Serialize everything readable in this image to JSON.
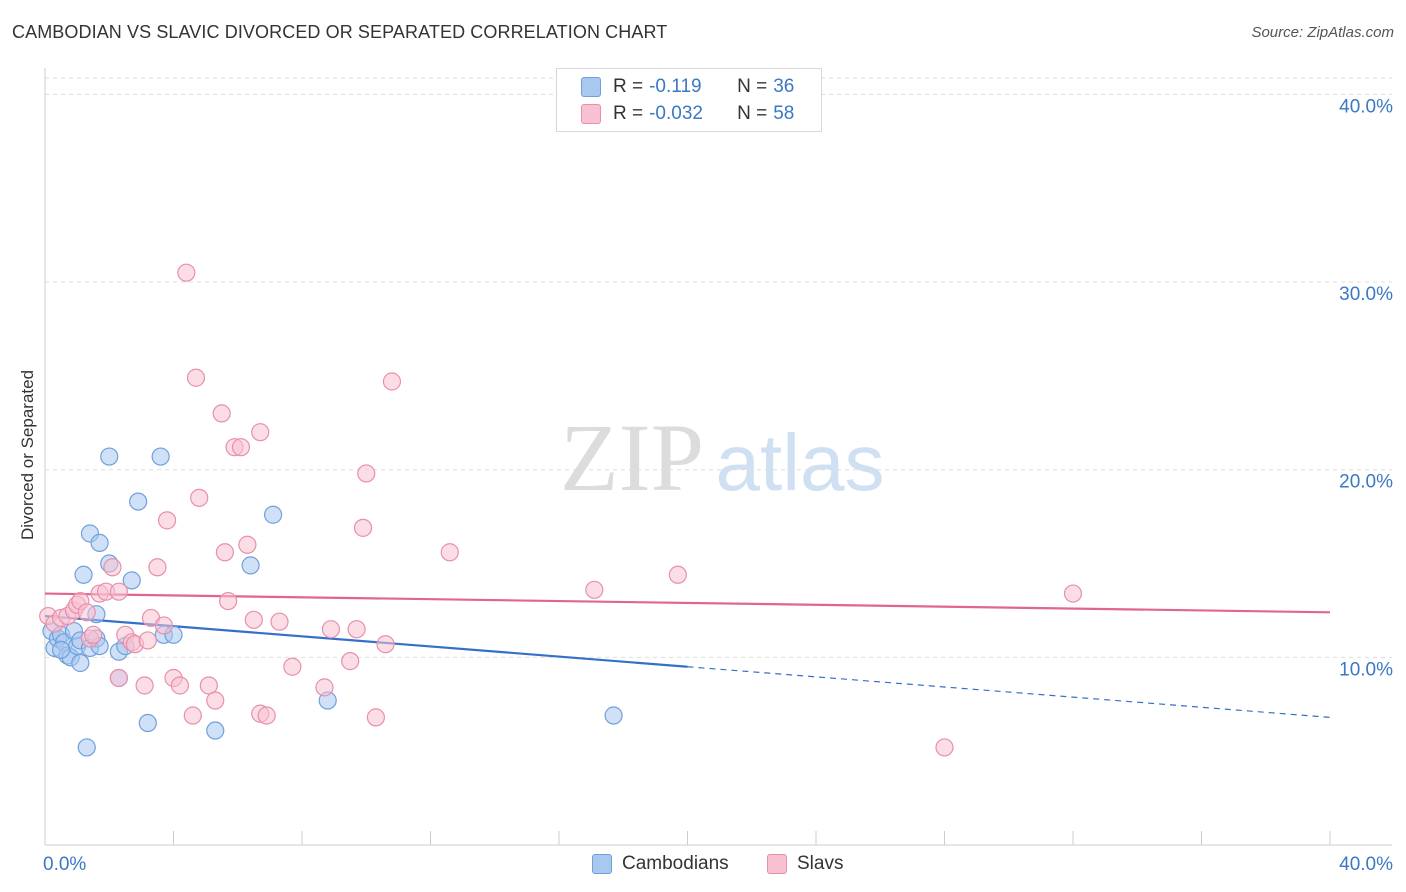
{
  "title": "CAMBODIAN VS SLAVIC DIVORCED OR SEPARATED CORRELATION CHART",
  "source": "Source: ZipAtlas.com",
  "watermark": {
    "part1": "ZIP",
    "part2": "atlas"
  },
  "legend_top": [
    {
      "r_label": "R =",
      "r_value": "-0.119",
      "n_label": "N =",
      "n_value": "36",
      "color": "#a9c8f0",
      "border": "#6fa0dc"
    },
    {
      "r_label": "R =",
      "r_value": "-0.032",
      "n_label": "N =",
      "n_value": "58",
      "color": "#f7c1d2",
      "border": "#e98fab"
    }
  ],
  "bottom_legend": [
    {
      "label": "Cambodians",
      "color": "#a9c8f0",
      "border": "#6fa0dc"
    },
    {
      "label": "Slavs",
      "color": "#f7c1d2",
      "border": "#e98fab"
    }
  ],
  "chart_data": {
    "type": "scatter",
    "title": "CAMBODIAN VS SLAVIC DIVORCED OR SEPARATED CORRELATION CHART",
    "xlabel": "",
    "ylabel": "Divorced or Separated",
    "xlim": [
      0,
      40
    ],
    "ylim": [
      0,
      41.3
    ],
    "x_tick_labels": [
      "0.0%",
      "40.0%"
    ],
    "y_ticks": [
      10,
      20,
      30,
      40
    ],
    "y_tick_labels": [
      "10.0%",
      "20.0%",
      "30.0%",
      "40.0%"
    ],
    "grid": true,
    "legend_position": "top-center",
    "series": [
      {
        "name": "Cambodians",
        "color": "#6fa0dc",
        "fill": "#a9c8f0",
        "trend": {
          "x": [
            0,
            20
          ],
          "y": [
            12.2,
            9.5
          ],
          "dashed_to": [
            40,
            6.8
          ],
          "color": "#3570c8"
        },
        "points": [
          [
            0.2,
            11.4
          ],
          [
            0.3,
            10.5
          ],
          [
            0.4,
            11.0
          ],
          [
            0.5,
            11.2
          ],
          [
            0.6,
            10.8
          ],
          [
            0.7,
            10.1
          ],
          [
            0.8,
            10.0
          ],
          [
            0.9,
            11.4
          ],
          [
            1.0,
            10.6
          ],
          [
            1.1,
            10.9
          ],
          [
            1.1,
            9.7
          ],
          [
            1.2,
            14.4
          ],
          [
            1.3,
            5.2
          ],
          [
            1.4,
            10.5
          ],
          [
            1.4,
            16.6
          ],
          [
            1.6,
            11.0
          ],
          [
            1.6,
            12.3
          ],
          [
            1.7,
            10.6
          ],
          [
            1.7,
            16.1
          ],
          [
            2.0,
            15.0
          ],
          [
            2.0,
            20.7
          ],
          [
            2.3,
            10.3
          ],
          [
            2.3,
            8.9
          ],
          [
            2.5,
            10.6
          ],
          [
            2.7,
            14.1
          ],
          [
            2.9,
            18.3
          ],
          [
            3.2,
            6.5
          ],
          [
            3.6,
            20.7
          ],
          [
            3.7,
            11.2
          ],
          [
            4.0,
            11.2
          ],
          [
            5.3,
            6.1
          ],
          [
            6.4,
            14.9
          ],
          [
            7.1,
            17.6
          ],
          [
            8.8,
            7.7
          ],
          [
            17.7,
            6.9
          ],
          [
            0.5,
            10.4
          ]
        ]
      },
      {
        "name": "Slavs",
        "color": "#e98fab",
        "fill": "#f7c1d2",
        "trend": {
          "x": [
            0,
            40
          ],
          "y": [
            13.4,
            12.4
          ],
          "color": "#e0668e"
        },
        "points": [
          [
            0.1,
            12.2
          ],
          [
            0.3,
            11.8
          ],
          [
            0.5,
            12.1
          ],
          [
            0.7,
            12.2
          ],
          [
            0.9,
            12.5
          ],
          [
            1.0,
            12.8
          ],
          [
            1.1,
            13.0
          ],
          [
            1.3,
            12.4
          ],
          [
            1.4,
            11.0
          ],
          [
            1.5,
            11.2
          ],
          [
            1.7,
            13.4
          ],
          [
            1.9,
            13.5
          ],
          [
            2.1,
            14.8
          ],
          [
            2.3,
            13.5
          ],
          [
            2.3,
            8.9
          ],
          [
            2.5,
            11.2
          ],
          [
            2.7,
            10.8
          ],
          [
            2.8,
            10.7
          ],
          [
            3.1,
            8.5
          ],
          [
            3.2,
            10.9
          ],
          [
            3.3,
            12.1
          ],
          [
            3.5,
            14.8
          ],
          [
            3.7,
            11.7
          ],
          [
            3.8,
            17.3
          ],
          [
            4.0,
            8.9
          ],
          [
            4.2,
            8.5
          ],
          [
            4.4,
            30.5
          ],
          [
            4.6,
            6.9
          ],
          [
            4.7,
            24.9
          ],
          [
            4.8,
            18.5
          ],
          [
            5.1,
            8.5
          ],
          [
            5.3,
            7.7
          ],
          [
            5.5,
            23.0
          ],
          [
            5.6,
            15.6
          ],
          [
            5.7,
            13.0
          ],
          [
            5.9,
            21.2
          ],
          [
            6.1,
            21.2
          ],
          [
            6.3,
            16.0
          ],
          [
            6.5,
            12.0
          ],
          [
            6.7,
            22.0
          ],
          [
            6.7,
            7.0
          ],
          [
            6.9,
            6.9
          ],
          [
            7.3,
            11.9
          ],
          [
            7.7,
            9.5
          ],
          [
            8.7,
            8.4
          ],
          [
            8.9,
            11.5
          ],
          [
            9.5,
            9.8
          ],
          [
            9.7,
            11.5
          ],
          [
            10.0,
            19.8
          ],
          [
            10.3,
            6.8
          ],
          [
            9.9,
            16.9
          ],
          [
            10.6,
            10.7
          ],
          [
            10.8,
            24.7
          ],
          [
            12.6,
            15.6
          ],
          [
            17.1,
            13.6
          ],
          [
            19.7,
            14.4
          ],
          [
            28.0,
            5.2
          ],
          [
            32.0,
            13.4
          ]
        ]
      }
    ]
  }
}
